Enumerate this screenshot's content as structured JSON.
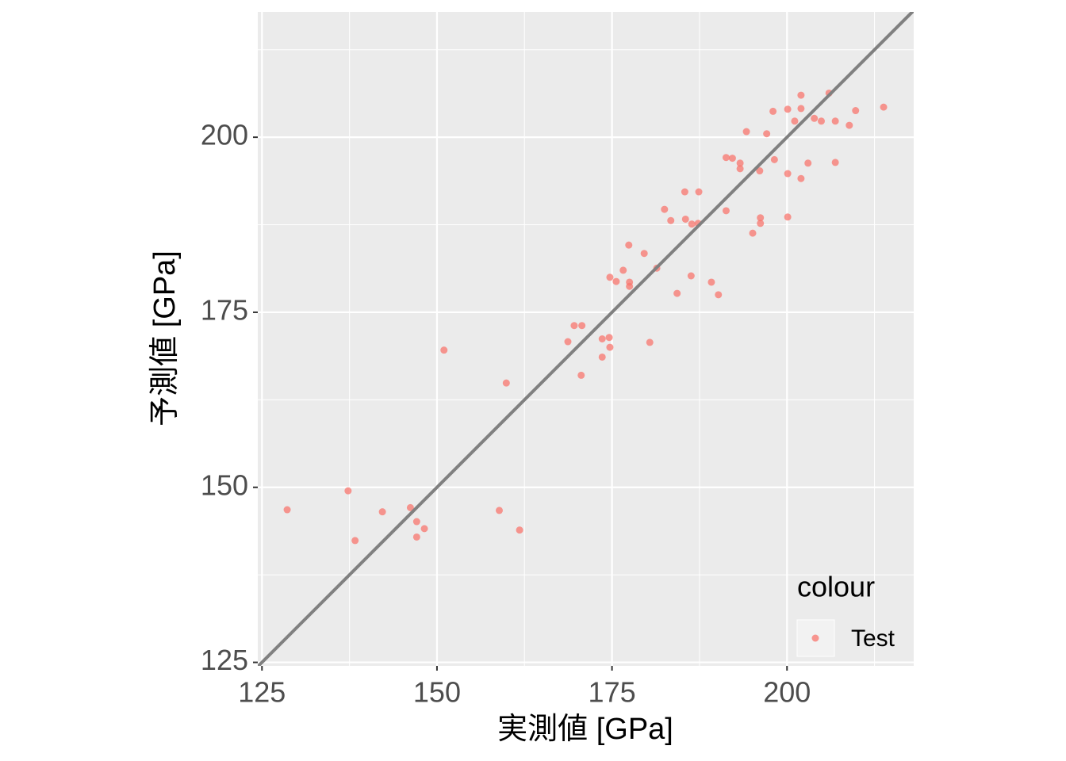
{
  "chart_data": {
    "type": "scatter",
    "xlabel": "実測値 [GPa]",
    "ylabel": "予測値 [GPa]",
    "xlim": [
      124.4,
      218.1
    ],
    "ylim": [
      124.5,
      217.9
    ],
    "xticks": [
      125,
      150,
      175,
      200
    ],
    "yticks": [
      125,
      150,
      175,
      200
    ],
    "xminor": [
      137.5,
      162.5,
      187.5,
      212.5
    ],
    "yminor": [
      137.5,
      162.5,
      187.5,
      212.5
    ],
    "grid": true,
    "identity_line": true,
    "legend_title": "colour",
    "legend_position": "bottom-right",
    "series": [
      {
        "name": "Test",
        "color": "#F8766D",
        "x": [
          128.6,
          137.3,
          138.3,
          142.2,
          146.2,
          147.1,
          147.1,
          148.2,
          151.0,
          158.9,
          159.9,
          161.8,
          168.7,
          169.6,
          170.7,
          170.6,
          173.6,
          174.6,
          173.6,
          174.7,
          174.7,
          175.6,
          176.6,
          177.4,
          177.5,
          177.5,
          179.6,
          180.4,
          181.4,
          182.5,
          183.4,
          184.3,
          185.4,
          185.5,
          186.3,
          186.4,
          187.3,
          187.4,
          189.2,
          190.2,
          191.3,
          191.3,
          192.2,
          193.3,
          193.3,
          194.2,
          195.1,
          196.1,
          196.2,
          196.2,
          197.1,
          198.0,
          198.2,
          200.1,
          200.1,
          200.1,
          201.1,
          202.0,
          202.0,
          202.0,
          203.0,
          203.9,
          204.9,
          206.0,
          206.9,
          206.9,
          208.9,
          209.8,
          213.8
        ],
        "values": [
          146.8,
          149.5,
          142.4,
          146.5,
          147.1,
          145.1,
          142.9,
          144.1,
          169.6,
          146.7,
          164.9,
          143.9,
          170.8,
          173.1,
          173.1,
          166.0,
          171.2,
          171.4,
          168.6,
          170.0,
          180.0,
          179.4,
          181.0,
          184.6,
          179.3,
          178.7,
          183.4,
          170.7,
          181.3,
          189.7,
          188.1,
          177.7,
          192.2,
          188.3,
          180.2,
          187.6,
          187.7,
          192.2,
          179.3,
          177.5,
          189.5,
          197.1,
          197.0,
          196.3,
          195.5,
          200.8,
          186.3,
          195.2,
          188.5,
          187.7,
          200.5,
          203.7,
          196.8,
          204.0,
          194.8,
          188.6,
          202.3,
          206.0,
          204.1,
          194.1,
          196.3,
          202.7,
          202.3,
          206.3,
          202.3,
          196.4,
          201.7,
          203.8,
          204.3
        ]
      }
    ]
  }
}
